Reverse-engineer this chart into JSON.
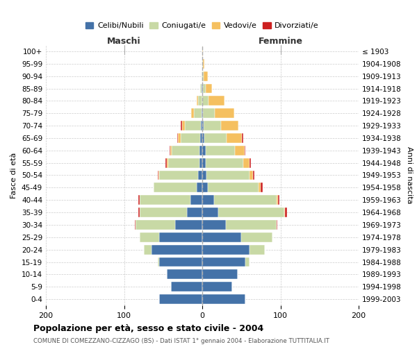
{
  "age_groups": [
    "0-4",
    "5-9",
    "10-14",
    "15-19",
    "20-24",
    "25-29",
    "30-34",
    "35-39",
    "40-44",
    "45-49",
    "50-54",
    "55-59",
    "60-64",
    "65-69",
    "70-74",
    "75-79",
    "80-84",
    "85-89",
    "90-94",
    "95-99",
    "100+"
  ],
  "birth_years": [
    "1999-2003",
    "1994-1998",
    "1989-1993",
    "1984-1988",
    "1979-1983",
    "1974-1978",
    "1969-1973",
    "1964-1968",
    "1959-1963",
    "1954-1958",
    "1949-1953",
    "1944-1948",
    "1939-1943",
    "1934-1938",
    "1929-1933",
    "1924-1928",
    "1919-1923",
    "1914-1918",
    "1909-1913",
    "1904-1908",
    "≤ 1903"
  ],
  "colors": {
    "celibi": "#4472a8",
    "coniugati": "#c8d9a5",
    "vedovi": "#f5c060",
    "divorziati": "#cc2020"
  },
  "maschi": {
    "celibi": [
      55,
      40,
      45,
      55,
      65,
      55,
      35,
      20,
      15,
      7,
      5,
      4,
      4,
      3,
      2,
      1,
      0,
      1,
      0,
      0,
      0
    ],
    "coniugati": [
      0,
      0,
      0,
      2,
      10,
      25,
      50,
      60,
      65,
      55,
      50,
      40,
      35,
      25,
      20,
      10,
      5,
      2,
      1,
      0,
      0
    ],
    "vedovi": [
      0,
      0,
      0,
      0,
      0,
      0,
      0,
      0,
      0,
      0,
      1,
      1,
      2,
      3,
      4,
      3,
      2,
      0,
      0,
      0,
      0
    ],
    "divorziati": [
      0,
      0,
      0,
      0,
      0,
      0,
      1,
      2,
      2,
      0,
      1,
      2,
      1,
      1,
      2,
      0,
      0,
      0,
      0,
      0,
      0
    ]
  },
  "femmine": {
    "celibi": [
      55,
      38,
      45,
      55,
      60,
      50,
      30,
      20,
      15,
      7,
      5,
      4,
      4,
      3,
      2,
      1,
      0,
      1,
      0,
      0,
      0
    ],
    "coniugati": [
      0,
      0,
      0,
      5,
      20,
      40,
      65,
      85,
      80,
      65,
      55,
      48,
      38,
      28,
      22,
      15,
      8,
      3,
      2,
      1,
      0
    ],
    "vedovi": [
      0,
      0,
      0,
      0,
      0,
      0,
      0,
      1,
      2,
      3,
      5,
      8,
      12,
      20,
      22,
      25,
      20,
      8,
      5,
      2,
      1
    ],
    "divorziati": [
      0,
      0,
      0,
      0,
      0,
      0,
      1,
      2,
      2,
      2,
      2,
      2,
      1,
      1,
      0,
      0,
      0,
      0,
      0,
      0,
      0
    ]
  },
  "xlim": 200,
  "title_main": "Popolazione per età, sesso e stato civile - 2004",
  "title_sub": "COMUNE DI COMEZZANO-CIZZAGO (BS) - Dati ISTAT 1° gennaio 2004 - Elaborazione TUTTITALIA.IT",
  "ylabel_left": "Fasce di età",
  "ylabel_right": "Anni di nascita",
  "label_maschi": "Maschi",
  "label_femmine": "Femmine",
  "legend_labels": [
    "Celibi/Nubili",
    "Coniugati/e",
    "Vedovi/e",
    "Divorziati/e"
  ],
  "background_color": "#ffffff",
  "grid_color": "#cccccc"
}
